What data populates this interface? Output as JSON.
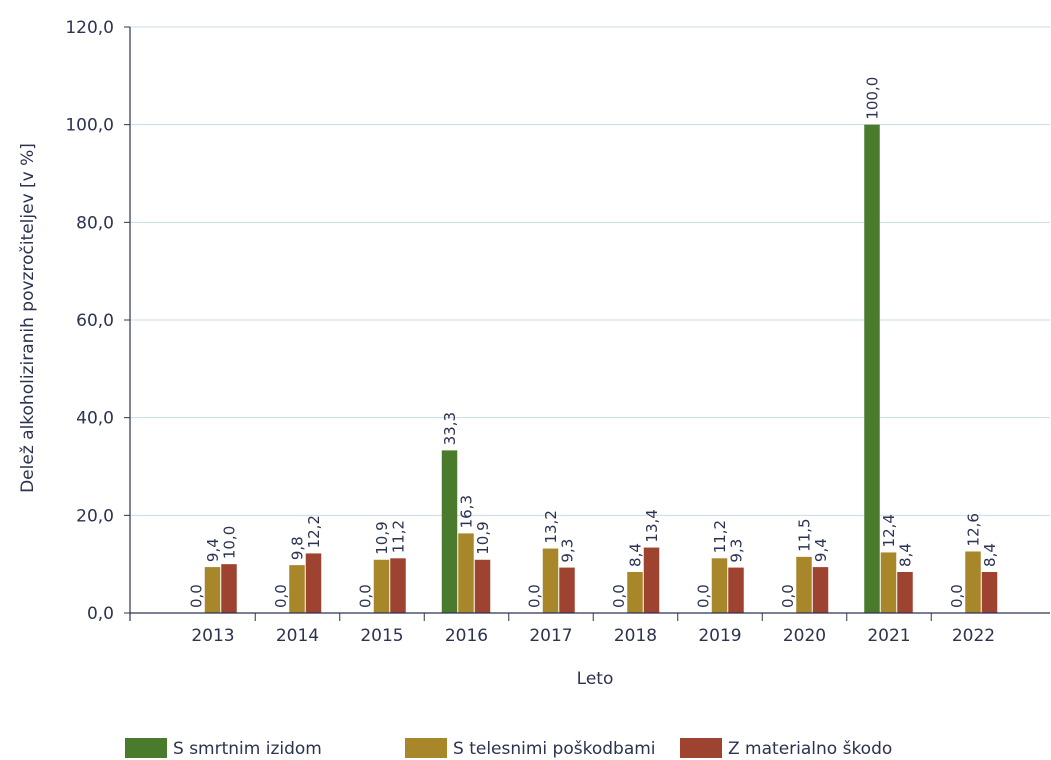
{
  "chart_data": {
    "type": "bar",
    "categories": [
      "2013",
      "2014",
      "2015",
      "2016",
      "2017",
      "2018",
      "2019",
      "2020",
      "2021",
      "2022"
    ],
    "series": [
      {
        "name": "S smrtnim izidom",
        "color": "#4a7a2c",
        "values": [
          0.0,
          0.0,
          0.0,
          33.3,
          0.0,
          0.0,
          0.0,
          0.0,
          100.0,
          0.0
        ],
        "labels": [
          "0,0",
          "0,0",
          "0,0",
          "33,3",
          "0,0",
          "0,0",
          "0,0",
          "0,0",
          "100,0",
          "0,0"
        ]
      },
      {
        "name": "S telesnimi poškodbami",
        "color": "#a8862a",
        "values": [
          9.4,
          9.8,
          10.9,
          16.3,
          13.2,
          8.4,
          11.2,
          11.5,
          12.4,
          12.6
        ],
        "labels": [
          "9,4",
          "9,8",
          "10,9",
          "16,3",
          "13,2",
          "8,4",
          "11,2",
          "11,5",
          "12,4",
          "12,6"
        ]
      },
      {
        "name": "Z materialno škodo",
        "color": "#9e4330",
        "values": [
          10.0,
          12.2,
          11.2,
          10.9,
          9.3,
          13.4,
          9.3,
          9.4,
          8.4,
          8.4
        ],
        "labels": [
          "10,0",
          "12,2",
          "11,2",
          "10,9",
          "9,3",
          "13,4",
          "9,3",
          "9,4",
          "8,4",
          "8,4"
        ]
      }
    ],
    "xlabel": "Leto",
    "ylabel": "Delež alkoholiziranih povzročiteljev [v %]",
    "ylim": [
      0,
      120
    ],
    "yticks": [
      0,
      20,
      40,
      60,
      80,
      100,
      120
    ],
    "ytick_labels": [
      "0,0",
      "20,0",
      "40,0",
      "60,0",
      "80,0",
      "100,0",
      "120,0"
    ],
    "grid": true,
    "legend_position": "bottom"
  }
}
